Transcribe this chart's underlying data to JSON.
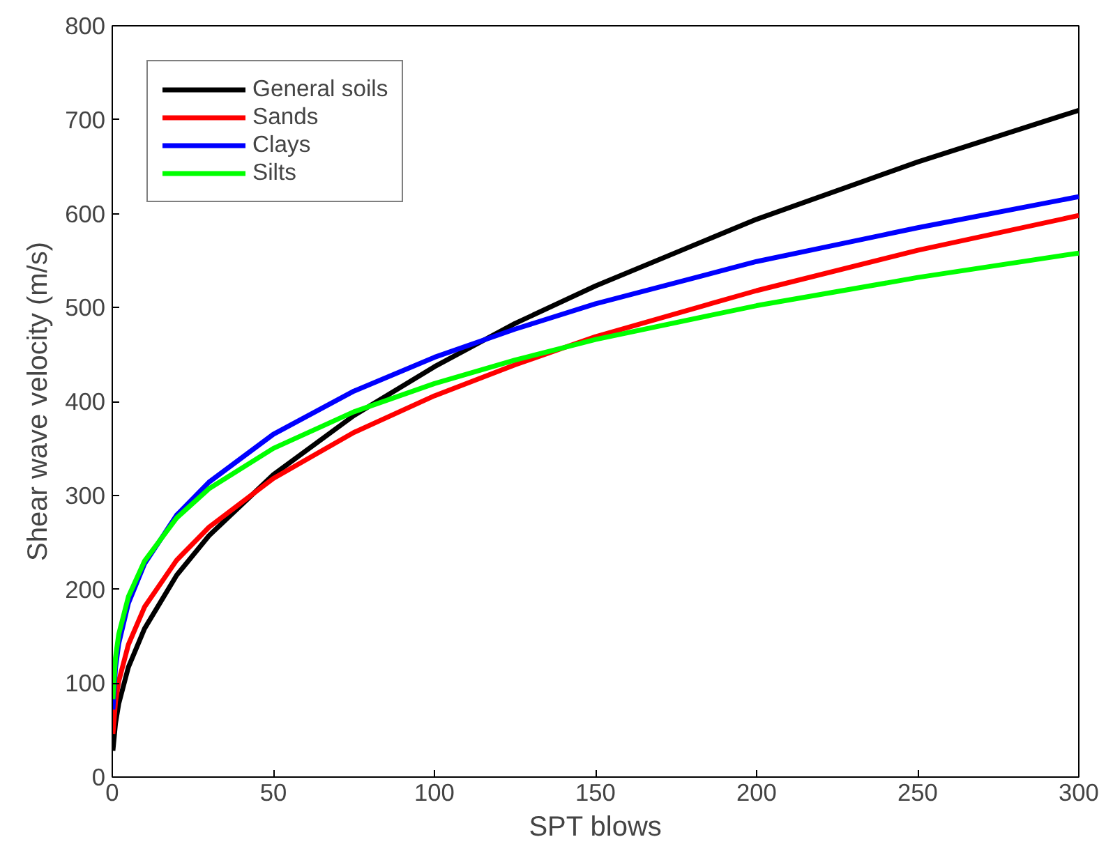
{
  "chart_data": {
    "type": "line",
    "xlabel": "SPT blows",
    "ylabel": "Shear wave velocity (m/s)",
    "x": [
      0.2,
      1,
      2,
      5,
      10,
      20,
      30,
      50,
      75,
      100,
      125,
      150,
      200,
      250,
      300
    ],
    "series": [
      {
        "name": "General soils",
        "color": "#000000",
        "values": [
          28,
          57,
          78,
          117,
          158,
          215,
          257,
          322,
          385,
          437,
          483,
          523,
          594,
          655,
          710
        ]
      },
      {
        "name": "Sands",
        "color": "#ff0000",
        "values": [
          46,
          80,
          102,
          141,
          181,
          231,
          266,
          318,
          367,
          406,
          439,
          469,
          518,
          561,
          598
        ]
      },
      {
        "name": "Clays",
        "color": "#0000ff",
        "values": [
          72,
          116,
          142,
          185,
          227,
          279,
          314,
          365,
          411,
          447,
          477,
          504,
          549,
          585,
          618
        ]
      },
      {
        "name": "Silts",
        "color": "#00ff00",
        "values": [
          83,
          127,
          152,
          192,
          230,
          276,
          307,
          350,
          389,
          419,
          444,
          466,
          502,
          532,
          558
        ]
      }
    ],
    "xlim": [
      0,
      300
    ],
    "xticks": [
      0,
      50,
      100,
      150,
      200,
      250,
      300
    ],
    "ylim": [
      0,
      800
    ],
    "yticks": [
      0,
      100,
      200,
      300,
      400,
      500,
      600,
      700,
      800
    ],
    "grid": false,
    "legend": "top left",
    "marker": "none",
    "line_style": "solid"
  }
}
